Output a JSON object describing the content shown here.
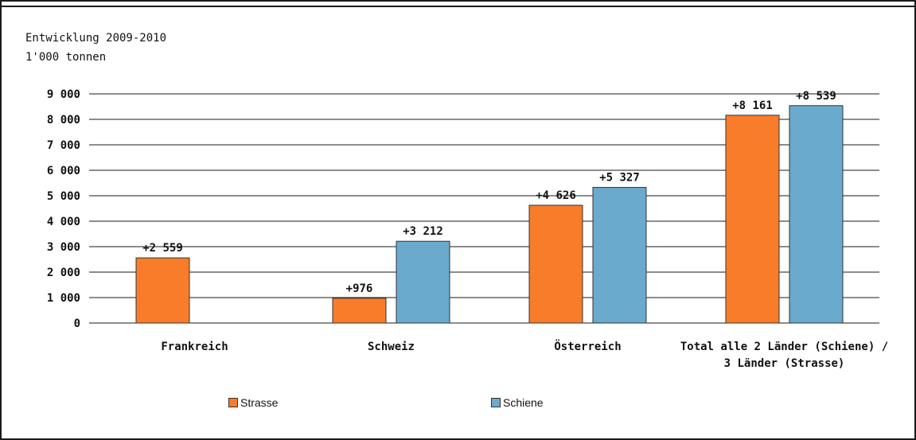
{
  "header": {
    "subtitle": "Entwicklung 2009-2010",
    "unit": "1'000 tonnen"
  },
  "colors": {
    "strasse": "#f87c2a",
    "schiene": "#6aaacc",
    "frame": "#1a1a1a"
  },
  "chart_data": {
    "type": "bar",
    "title": "",
    "xlabel": "",
    "ylabel": "",
    "ylim": [
      0,
      9000
    ],
    "yticks": [
      0,
      1000,
      2000,
      3000,
      4000,
      5000,
      6000,
      7000,
      8000,
      9000
    ],
    "ytick_labels": [
      "0",
      "1 000",
      "2 000",
      "3 000",
      "4 000",
      "5 000",
      "6 000",
      "7 000",
      "8 000",
      "9 000"
    ],
    "grid": true,
    "legend_position": "bottom",
    "categories": [
      [
        "Frankreich"
      ],
      [
        "Schweiz"
      ],
      [
        "Österreich"
      ],
      [
        "Total alle 2 Länder (Schiene) /",
        "3 Länder (Strasse)"
      ]
    ],
    "series": [
      {
        "name": "Strasse",
        "color": "#f87c2a",
        "values": [
          2559,
          976,
          4626,
          8161
        ],
        "labels": [
          "+2 559",
          "+976",
          "+4 626",
          "+8 161"
        ]
      },
      {
        "name": "Schiene",
        "color": "#6aaacc",
        "values": [
          null,
          3212,
          5327,
          8539
        ],
        "labels": [
          "",
          "+3 212",
          "+5 327",
          "+8 539"
        ]
      }
    ]
  }
}
